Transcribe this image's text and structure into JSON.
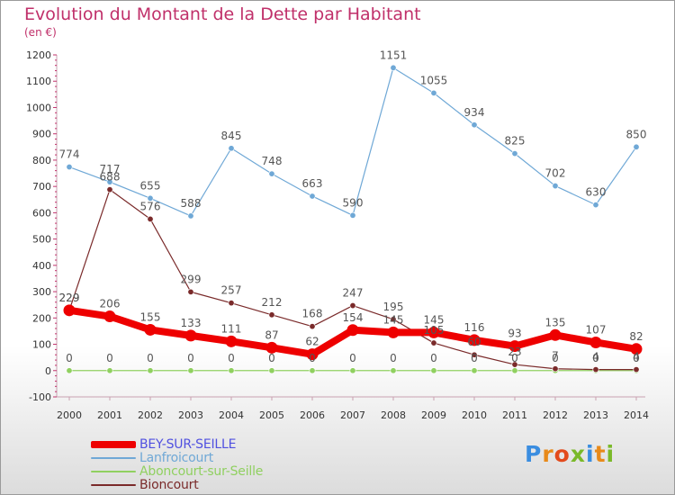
{
  "title": "Evolution du Montant de la Dette par Habitant",
  "subtitle": "(en €)",
  "brand": {
    "letters": [
      "P",
      "r",
      "o",
      "x",
      "i",
      "t",
      "i"
    ],
    "colors": [
      "#3a8de0",
      "#e88a1a",
      "#e34a1c",
      "#7ab929",
      "#3a8de0",
      "#e88a1a",
      "#7ab929"
    ]
  },
  "chart_data": {
    "type": "line",
    "x": [
      2000,
      2001,
      2002,
      2003,
      2004,
      2005,
      2006,
      2007,
      2008,
      2009,
      2010,
      2011,
      2012,
      2013,
      2014
    ],
    "ylim": [
      -100,
      1200
    ],
    "yticks": [
      -100,
      0,
      100,
      200,
      300,
      400,
      500,
      600,
      700,
      800,
      900,
      1000,
      1100,
      1200
    ],
    "grid": false,
    "legend_position": "bottom-left",
    "series": [
      {
        "name": "Lanfroicourt",
        "color": "#6fa8d6",
        "values": [
          774,
          717,
          655,
          588,
          845,
          748,
          663,
          590,
          1151,
          1055,
          934,
          825,
          702,
          630,
          850
        ]
      },
      {
        "name": "Aboncourt-sur-Seille",
        "color": "#90d060",
        "values": [
          0,
          0,
          0,
          0,
          0,
          0,
          0,
          0,
          0,
          0,
          0,
          0,
          0,
          0,
          0
        ]
      },
      {
        "name": "Bioncourt",
        "color": "#7a2a2a",
        "values": [
          229,
          688,
          576,
          299,
          257,
          212,
          168,
          247,
          195,
          105,
          60,
          23,
          7,
          4,
          4
        ]
      },
      {
        "name": "BEY-SUR-SEILLE",
        "color": "#ee0000",
        "values": [
          229,
          206,
          155,
          133,
          111,
          87,
          62,
          154,
          145,
          145,
          116,
          93,
          135,
          107,
          82
        ]
      }
    ]
  }
}
